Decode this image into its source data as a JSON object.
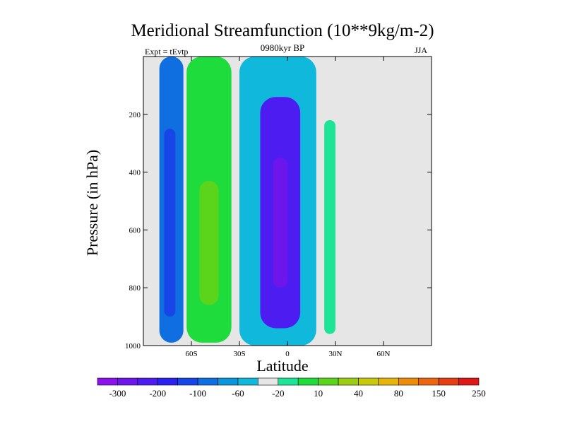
{
  "chart_data": {
    "type": "heatmap",
    "title": "Meridional Streamfunction (10**9kg/m-2)",
    "subtitle_left": "Expt = tEvtp",
    "subtitle_center": "0980kyr BP",
    "subtitle_right": "JJA",
    "xlabel": "Latitude",
    "ylabel": "Pressure (in hPa)",
    "xlim": [
      -90,
      90
    ],
    "ylim": [
      0,
      1000
    ],
    "y_reversed": true,
    "x_ticks": [
      {
        "value": -60,
        "label": "60S"
      },
      {
        "value": -30,
        "label": "30S"
      },
      {
        "value": 0,
        "label": "0"
      },
      {
        "value": 30,
        "label": "30N"
      },
      {
        "value": 60,
        "label": "60N"
      }
    ],
    "y_ticks": [
      200,
      400,
      600,
      800,
      1000
    ],
    "background_color": "#e6e6e6",
    "colorbar": {
      "colors": [
        "#8b12e8",
        "#6d16ec",
        "#4d1cf0",
        "#2a22ee",
        "#1846e6",
        "#0f6fe0",
        "#0a95dc",
        "#10b8dc",
        "#e6e6e6",
        "#1ee496",
        "#1edc3c",
        "#5ad51c",
        "#9ccd14",
        "#c8c80c",
        "#e6b40a",
        "#ec8c0a",
        "#ea6610",
        "#e43e12",
        "#dc1818"
      ],
      "labels": [
        {
          "boundary": 1,
          "text": "-300"
        },
        {
          "boundary": 3,
          "text": "-200"
        },
        {
          "boundary": 5,
          "text": "-100"
        },
        {
          "boundary": 7,
          "text": "-60"
        },
        {
          "boundary": 9,
          "text": "-20"
        },
        {
          "boundary": 11,
          "text": "10"
        },
        {
          "boundary": 13,
          "text": "40"
        },
        {
          "boundary": 15,
          "text": "80"
        },
        {
          "boundary": 17,
          "text": "150"
        },
        {
          "boundary": 19,
          "text": "250"
        }
      ]
    },
    "cells": [
      {
        "name": "south-left-cell",
        "level": 7,
        "color": "#0f6fe0",
        "lat": [
          -80,
          -65
        ],
        "p": [
          0,
          990
        ]
      },
      {
        "name": "south-left-inner",
        "level": 6,
        "color": "#1846e6",
        "lat": [
          -77,
          -70
        ],
        "p": [
          250,
          900
        ]
      },
      {
        "name": "southern-ferrel-outer",
        "level": 12,
        "color": "#1edc3c",
        "lat": [
          -63,
          -35
        ],
        "p": [
          0,
          990
        ]
      },
      {
        "name": "southern-ferrel-inner",
        "level": 13,
        "color": "#5ad51c",
        "lat": [
          -55,
          -43
        ],
        "p": [
          430,
          860
        ]
      },
      {
        "name": "hadley-outer",
        "level": 9,
        "color": "#10b8dc",
        "lat": [
          -30,
          18
        ],
        "p": [
          0,
          1000
        ]
      },
      {
        "name": "hadley-core",
        "level": 2,
        "color": "#4d1cf0",
        "lat": [
          -17,
          8
        ],
        "p": [
          140,
          940
        ]
      },
      {
        "name": "hadley-center",
        "level": 1,
        "color": "#6d16ec",
        "lat": [
          -9,
          0
        ],
        "p": [
          350,
          800
        ]
      },
      {
        "name": "northern-cell",
        "level": 10,
        "color": "#1ee496",
        "lat": [
          23,
          30
        ],
        "p": [
          220,
          960
        ]
      }
    ]
  }
}
